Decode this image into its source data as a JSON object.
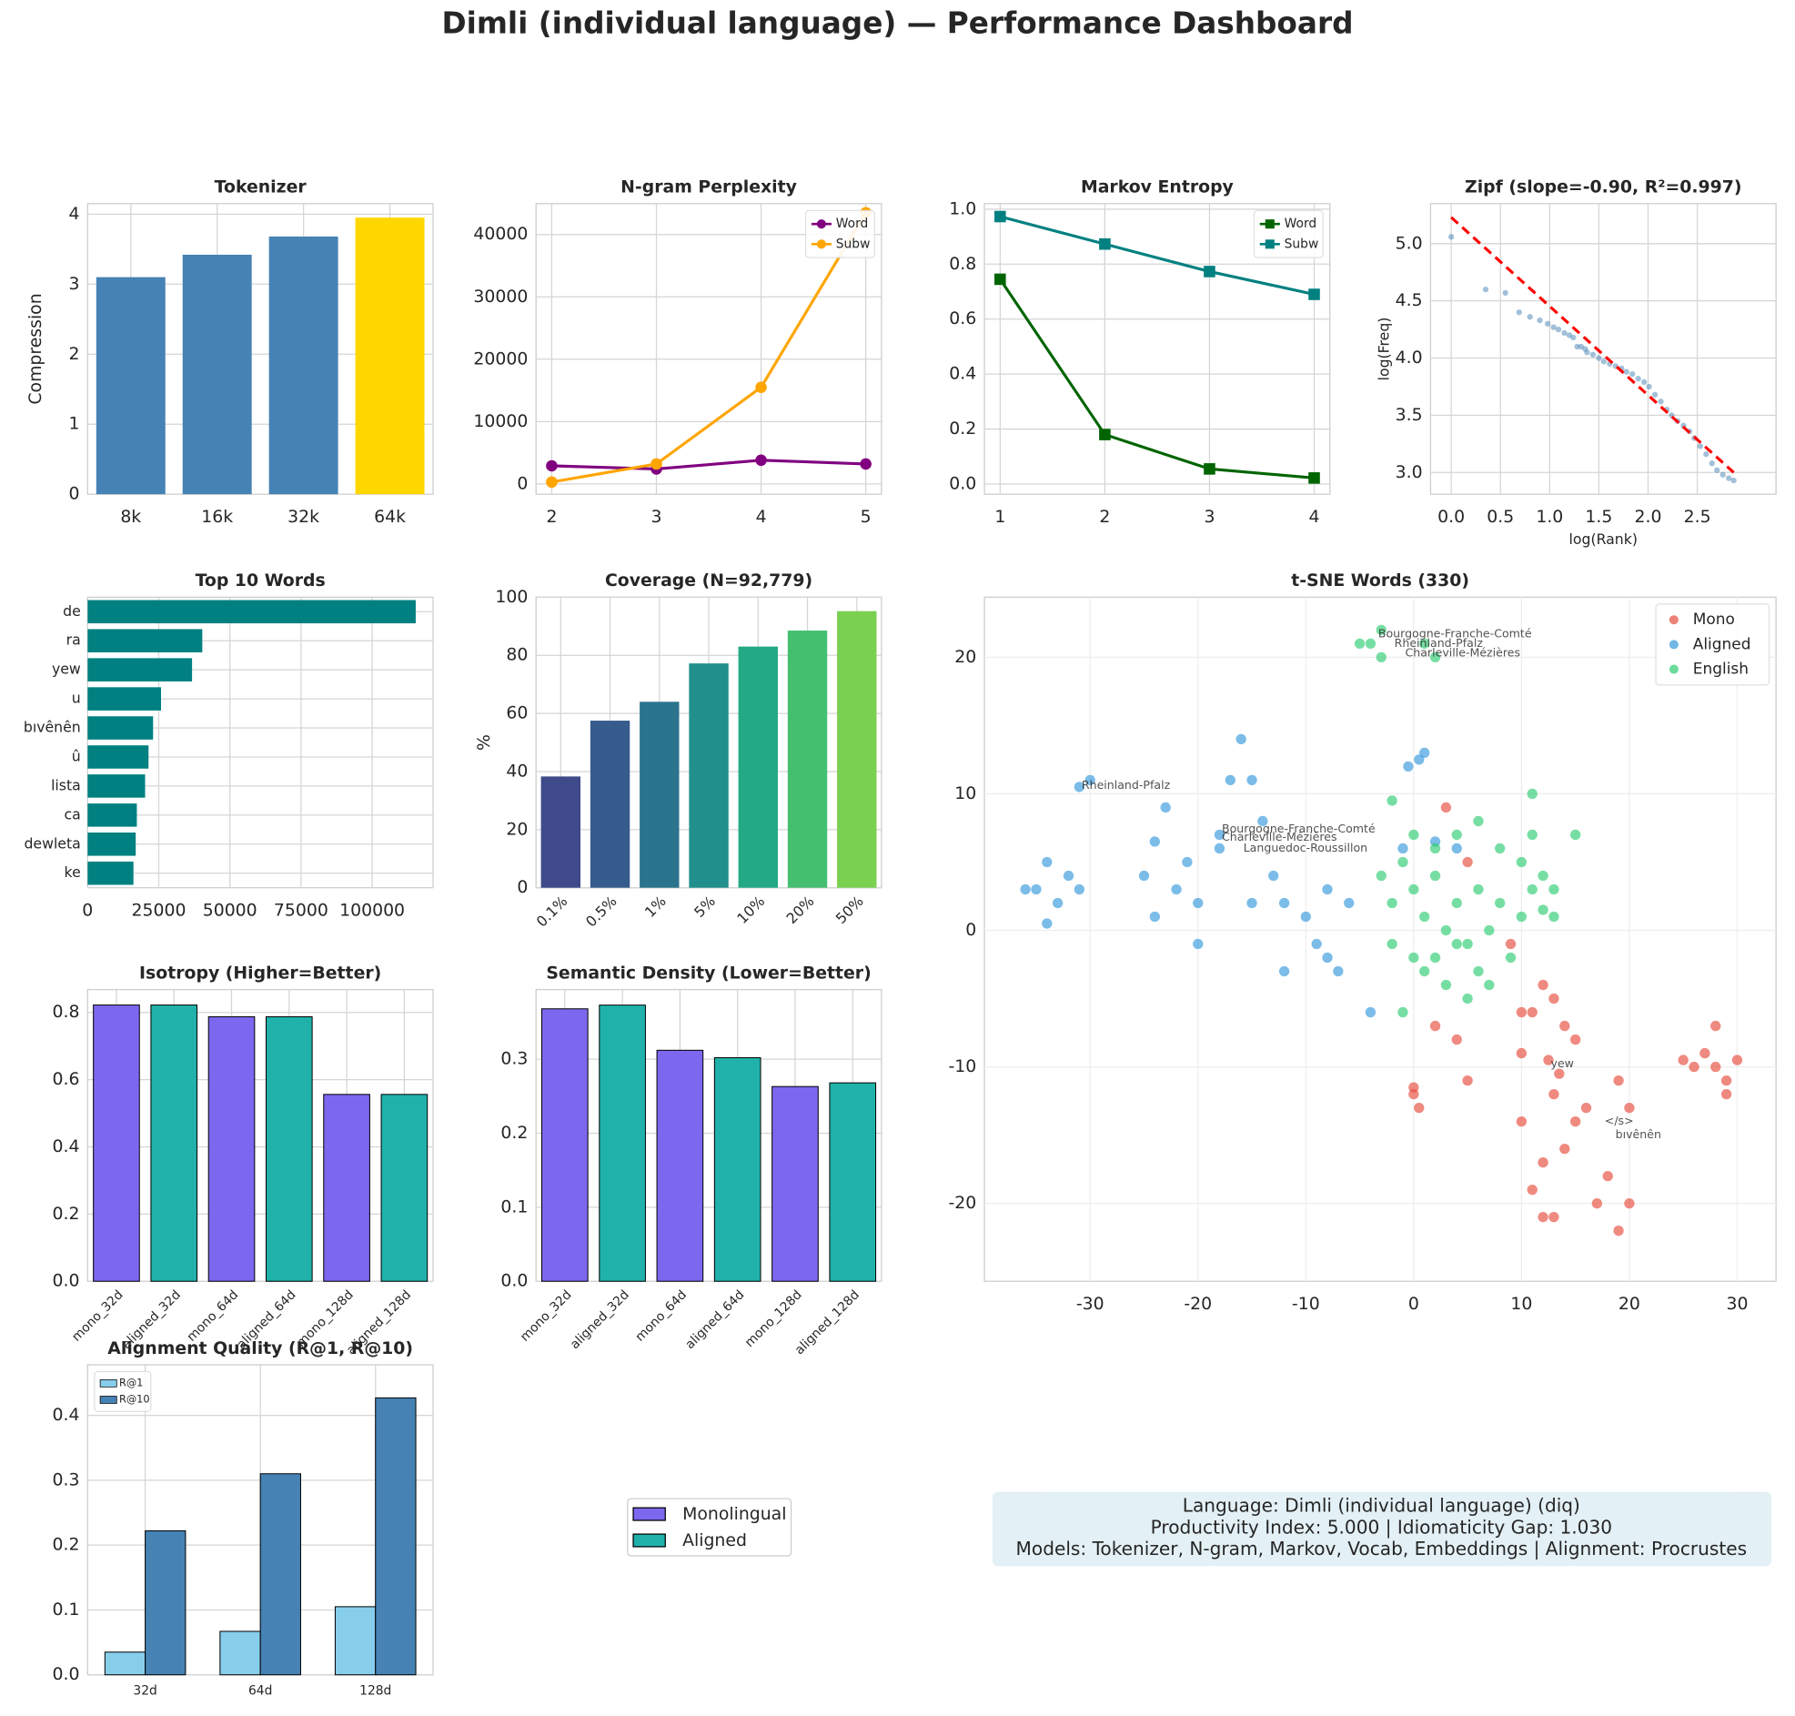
{
  "title": "Dimli (individual language) — Performance Dashboard",
  "chart_data": [
    {
      "type": "bar",
      "title": "Tokenizer",
      "ylabel": "Compression",
      "categories": [
        "8k",
        "16k",
        "32k",
        "64k"
      ],
      "values": [
        3.1,
        3.42,
        3.68,
        3.95
      ],
      "colors": [
        "#4682b4",
        "#4682b4",
        "#4682b4",
        "#ffd700"
      ],
      "ylim": [
        0,
        4.15
      ],
      "yticks": [
        0,
        1,
        2,
        3,
        4
      ],
      "grid": true
    },
    {
      "type": "line",
      "title": "N-gram Perplexity",
      "x": [
        2,
        3,
        4,
        5
      ],
      "series": [
        {
          "name": "Word",
          "color": "#800080",
          "marker": "o",
          "values": [
            2900,
            2400,
            3800,
            3200
          ]
        },
        {
          "name": "Subw",
          "color": "#ffa500",
          "marker": "o",
          "values": [
            300,
            3200,
            15500,
            43500
          ]
        }
      ],
      "xlim": [
        1.85,
        5.15
      ],
      "xticks": [
        2,
        3,
        4,
        5
      ],
      "ylim": [
        -1650,
        44950
      ],
      "yticks": [
        0,
        10000,
        20000,
        30000,
        40000
      ],
      "grid": true,
      "legend": "upper right"
    },
    {
      "type": "line",
      "title": "Markov Entropy",
      "x": [
        1,
        2,
        3,
        4
      ],
      "series": [
        {
          "name": "Word",
          "color": "#006400",
          "marker": "s",
          "values": [
            0.745,
            0.18,
            0.055,
            0.022
          ]
        },
        {
          "name": "Subw",
          "color": "#008080",
          "marker": "s",
          "values": [
            0.973,
            0.873,
            0.773,
            0.69
          ]
        }
      ],
      "xlim": [
        0.85,
        4.15
      ],
      "xticks": [
        1,
        2,
        3,
        4
      ],
      "ylim": [
        -0.037,
        1.02
      ],
      "yticks": [
        {
          "value": 0,
          "label": "0.0"
        },
        0.2,
        0.4,
        0.6,
        0.8,
        {
          "value": 1,
          "label": "1.0"
        }
      ],
      "grid": true,
      "legend": "upper right"
    },
    {
      "type": "scatter",
      "title": "Zipf (slope=-0.90, R²=0.997)",
      "xlabel": "log(Rank)",
      "ylabel": "log(Freq)",
      "series": [
        {
          "color": "#4682b4",
          "x": [
            0,
            0.35,
            0.55,
            0.69,
            0.8,
            0.9,
            0.98,
            1.04,
            1.09,
            1.15,
            1.2,
            1.24,
            1.28,
            1.32,
            1.36,
            1.38,
            1.44,
            1.5,
            1.55,
            1.61,
            1.67,
            1.73,
            1.78,
            1.84,
            1.9,
            1.96,
            2.01,
            2.07,
            2.13,
            2.19,
            2.24,
            2.3,
            2.36,
            2.42,
            2.47,
            2.53,
            2.59,
            2.65,
            2.7,
            2.76,
            2.82,
            2.87
          ],
          "y": [
            5.06,
            4.6,
            4.57,
            4.4,
            4.36,
            4.33,
            4.3,
            4.27,
            4.25,
            4.22,
            4.2,
            4.18,
            4.1,
            4.1,
            4.08,
            4.05,
            4.03,
            4.0,
            3.97,
            3.95,
            3.93,
            3.91,
            3.88,
            3.86,
            3.82,
            3.79,
            3.75,
            3.68,
            3.62,
            3.55,
            3.5,
            3.45,
            3.41,
            3.36,
            3.3,
            3.23,
            3.16,
            3.08,
            3.02,
            2.98,
            2.95,
            2.93
          ]
        }
      ],
      "fit": {
        "color": "#ff0000",
        "x": [
          0,
          2.87
        ],
        "y": [
          5.23,
          3.0
        ]
      },
      "xlim": [
        -0.21,
        3.3
      ],
      "xticks": [
        {
          "value": 0,
          "label": "0.0"
        },
        0.5,
        {
          "value": 1,
          "label": "1.0"
        },
        1.5,
        {
          "value": 2,
          "label": "2.0"
        },
        2.5
      ],
      "ylim": [
        2.81,
        5.35
      ],
      "yticks": [
        {
          "value": 3,
          "label": "3.0"
        },
        3.5,
        {
          "value": 4,
          "label": "4.0"
        },
        4.5,
        {
          "value": 5,
          "label": "5.0"
        }
      ],
      "grid": true
    },
    {
      "type": "barh",
      "title": "Top 10 Words",
      "categories": [
        "de",
        "ra",
        "yew",
        "u",
        "bıvênên",
        "û",
        "lista",
        "ca",
        "dewleta",
        "ke"
      ],
      "values": [
        115300,
        40300,
        36700,
        25800,
        23000,
        21400,
        20200,
        17300,
        16900,
        16100
      ],
      "color": "#008080",
      "xlim": [
        0,
        121400
      ],
      "xticks": [
        0,
        25000,
        50000,
        75000,
        100000
      ],
      "grid": true
    },
    {
      "type": "bar",
      "title": "Coverage (N=92,779)",
      "ylabel": "%",
      "categories": [
        "0.1%",
        "0.5%",
        "1%",
        "5%",
        "10%",
        "20%",
        "50%"
      ],
      "values": [
        38.3,
        57.5,
        64,
        77.2,
        83,
        88.5,
        95.2
      ],
      "colors": [
        "#3e4a89",
        "#365c8d",
        "#2b748e",
        "#21908d",
        "#23a983",
        "#44bf70",
        "#7ad151"
      ],
      "ylim": [
        0,
        100
      ],
      "yticks": [
        0,
        20,
        40,
        60,
        80,
        100
      ],
      "grid": true
    },
    {
      "type": "scatter",
      "title": "t-SNE Words (330)",
      "series": [
        {
          "name": "Mono",
          "color": "#e74c3c",
          "x": [
            12,
            13,
            11,
            14,
            10,
            13.5,
            12.5,
            15,
            9,
            10,
            13,
            0,
            0,
            0.5,
            5,
            10,
            12,
            14,
            11,
            13,
            12,
            17,
            19,
            20,
            18,
            19,
            20,
            26,
            27,
            28,
            29,
            30,
            28,
            25,
            29,
            3,
            5,
            2,
            4,
            15,
            16
          ],
          "y": [
            -4,
            -5,
            -6,
            -7,
            -9,
            -10.5,
            -9.5,
            -8,
            -1,
            -6,
            -12,
            -11.5,
            -12,
            -13,
            -11,
            -14,
            -17,
            -16,
            -19,
            -21,
            -21,
            -20,
            -22,
            -20,
            -18,
            -11,
            -13,
            -10,
            -9,
            -10,
            -11,
            -9.5,
            -7,
            -9.5,
            -12,
            9,
            5,
            -7,
            -8,
            -14,
            -13
          ],
          "labels": [
            {
              "text": "yew",
              "x": 12.5,
              "y": -9.8
            },
            {
              "text": "</s>",
              "x": 17.5,
              "y": -14
            },
            {
              "text": "bıvênên",
              "x": 18.5,
              "y": -15
            }
          ]
        },
        {
          "name": "Aligned",
          "color": "#3498db",
          "x": [
            -35,
            -34,
            -33,
            -32,
            -36,
            -34,
            -31,
            -30,
            -31,
            -25,
            -24,
            -22,
            -20,
            -21,
            -18,
            -17,
            -16,
            -15,
            -14,
            -13,
            -12,
            -10,
            -9,
            -8,
            -7,
            -6,
            -8,
            -12,
            -4,
            1,
            0.5,
            -0.5,
            -1,
            2,
            4,
            -20,
            -23,
            -24,
            -15,
            -18
          ],
          "y": [
            3,
            5,
            2,
            4,
            3,
            0.5,
            3,
            11,
            10.5,
            4,
            1,
            3,
            2,
            5,
            6,
            11,
            14,
            11,
            8,
            4,
            2,
            1,
            -1,
            -2,
            -3,
            2,
            3,
            -3,
            -6,
            13,
            12.5,
            12,
            6,
            6.5,
            6,
            -1,
            9,
            6.5,
            2,
            7
          ],
          "labels": [
            {
              "text": "Rheinland-Pfalz",
              "x": -31,
              "y": 10.6
            },
            {
              "text": "Bourgogne-Franche-Comté",
              "x": -18,
              "y": 7.4
            },
            {
              "text": "Charleville-Mézières",
              "x": -18,
              "y": 6.8
            },
            {
              "text": "Languedoc-Roussillon",
              "x": -16,
              "y": 6
            }
          ]
        },
        {
          "name": "English",
          "color": "#2ecc71",
          "x": [
            -3,
            -4,
            -3,
            1,
            2,
            -5,
            11,
            -2,
            0,
            2,
            4,
            6,
            8,
            10,
            12,
            15,
            13,
            -3,
            -2,
            0,
            1,
            2,
            3,
            4,
            5,
            6,
            7,
            8,
            9,
            10,
            11,
            12,
            -2,
            0,
            1,
            3,
            5,
            6,
            7,
            2,
            4,
            -1,
            13,
            -1,
            11
          ],
          "y": [
            22,
            21,
            20,
            21,
            20,
            21,
            10,
            9.5,
            7,
            6,
            7,
            8,
            6,
            5,
            4,
            7,
            3,
            4,
            2,
            3,
            1,
            4,
            0,
            2,
            -1,
            3,
            0,
            2,
            -2,
            1,
            3,
            1.5,
            -1,
            -2,
            -3,
            -4,
            -5,
            -3,
            -4,
            -2,
            -1,
            -6,
            1,
            5,
            7
          ],
          "labels": [
            {
              "text": "Bourgogne-Franche-Comté",
              "x": -3.5,
              "y": 21.7
            },
            {
              "text": "Rheinland-Pfalz",
              "x": -2,
              "y": 21
            },
            {
              "text": "Charleville-Mézières",
              "x": -1,
              "y": 20.3
            }
          ]
        }
      ],
      "xlim": [
        -39.8,
        33.6
      ],
      "xticks": [
        -30,
        -20,
        -10,
        0,
        10,
        20,
        30
      ],
      "ylim": [
        -25.7,
        24.4
      ],
      "yticks": [
        -20,
        -10,
        0,
        10,
        20
      ],
      "grid": true,
      "legend": "upper right"
    },
    {
      "type": "bar",
      "title": "Isotropy (Higher=Better)",
      "categories": [
        "mono_32d",
        "aligned_32d",
        "mono_64d",
        "aligned_64d",
        "mono_128d",
        "aligned_128d"
      ],
      "values": [
        0.822,
        0.822,
        0.787,
        0.787,
        0.556,
        0.556
      ],
      "colors": [
        "#7b68ee",
        "#20b2aa",
        "#7b68ee",
        "#20b2aa",
        "#7b68ee",
        "#20b2aa"
      ],
      "edgecolor": "#000000",
      "ylim": [
        0,
        0.868
      ],
      "yticks": [
        {
          "value": 0,
          "label": "0.0"
        },
        0.2,
        0.4,
        0.6,
        0.8
      ],
      "grid": true
    },
    {
      "type": "bar",
      "title": "Semantic Density (Lower=Better)",
      "categories": [
        "mono_32d",
        "aligned_32d",
        "mono_64d",
        "aligned_64d",
        "mono_128d",
        "aligned_128d"
      ],
      "values": [
        0.368,
        0.373,
        0.312,
        0.302,
        0.263,
        0.268
      ],
      "colors": [
        "#7b68ee",
        "#20b2aa",
        "#7b68ee",
        "#20b2aa",
        "#7b68ee",
        "#20b2aa"
      ],
      "edgecolor": "#000000",
      "ylim": [
        0,
        0.394
      ],
      "yticks": [
        {
          "value": 0,
          "label": "0.0"
        },
        0.1,
        0.2,
        0.3
      ],
      "grid": true
    },
    {
      "type": "grouped_bar",
      "title": "Alignment Quality (R@1, R@10)",
      "categories": [
        "32d",
        "64d",
        "128d"
      ],
      "series": [
        {
          "name": "R@1",
          "color": "#87ceeb",
          "values": [
            0.035,
            0.067,
            0.105
          ]
        },
        {
          "name": "R@10",
          "color": "#4682b4",
          "values": [
            0.222,
            0.31,
            0.427
          ]
        }
      ],
      "edgecolor": "#000000",
      "ylim": [
        0,
        0.478
      ],
      "yticks": [
        {
          "value": 0,
          "label": "0.0"
        },
        0.1,
        0.2,
        0.3,
        0.4
      ],
      "grid": true,
      "legend": "upper left"
    }
  ],
  "shared_legend": [
    {
      "name": "Monolingual",
      "color": "#7b68ee"
    },
    {
      "name": "Aligned",
      "color": "#20b2aa"
    }
  ],
  "info_box": [
    "Language: Dimli (individual language) (diq)",
    "Productivity Index: 5.000  |  Idiomaticity Gap: 1.030",
    "Models: Tokenizer, N-gram, Markov, Vocab, Embeddings  |  Alignment: Procrustes"
  ]
}
